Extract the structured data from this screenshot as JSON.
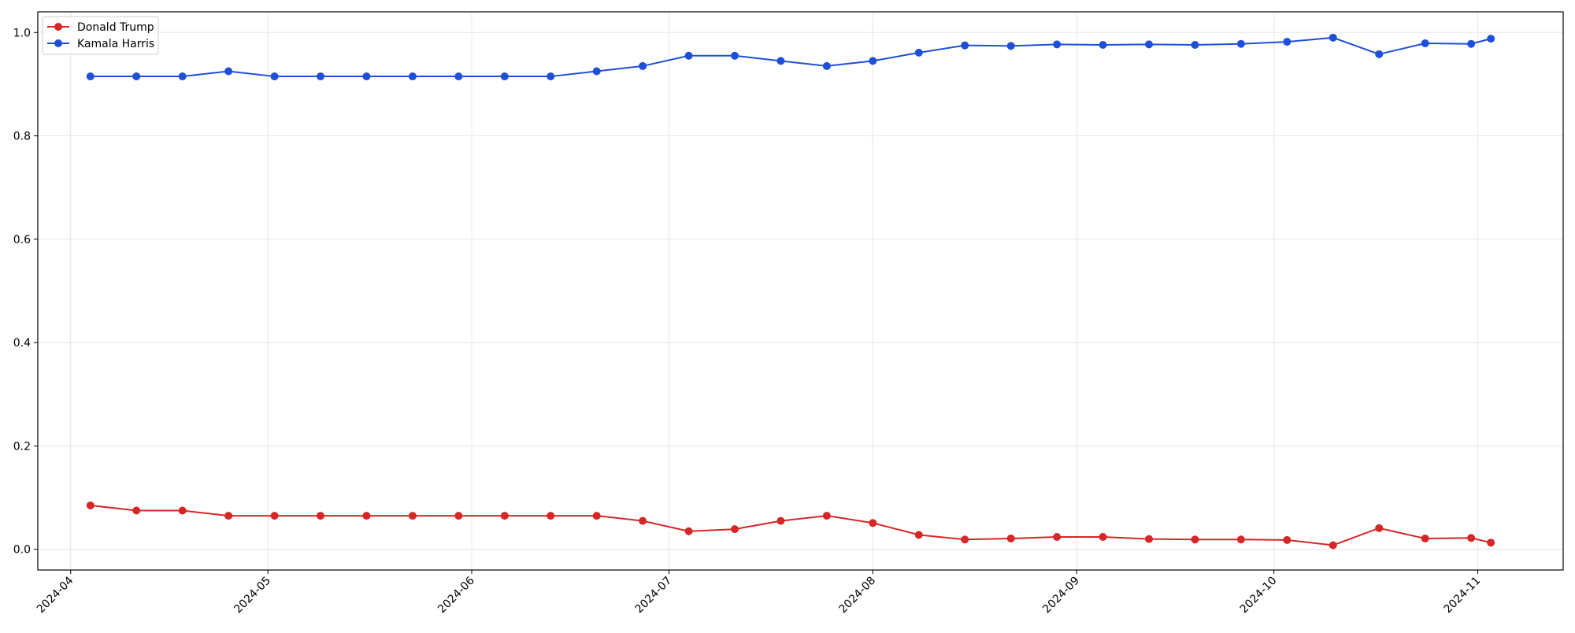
{
  "chart_data": {
    "type": "line",
    "title": "",
    "xlabel": "",
    "ylabel": "",
    "ylim": [
      -0.04,
      1.04
    ],
    "xlim": [
      "2024-03-27",
      "2024-11-14"
    ],
    "grid": true,
    "legend_position": "top-left",
    "x_ticks": [
      "2024-04",
      "2024-05",
      "2024-06",
      "2024-07",
      "2024-08",
      "2024-09",
      "2024-10",
      "2024-11"
    ],
    "y_ticks": [
      "0.0",
      "0.2",
      "0.4",
      "0.6",
      "0.8",
      "1.0"
    ],
    "x": [
      "2024-04-04",
      "2024-04-11",
      "2024-04-18",
      "2024-04-25",
      "2024-05-02",
      "2024-05-09",
      "2024-05-16",
      "2024-05-23",
      "2024-05-30",
      "2024-06-06",
      "2024-06-13",
      "2024-06-20",
      "2024-06-27",
      "2024-07-04",
      "2024-07-11",
      "2024-07-18",
      "2024-07-25",
      "2024-08-01",
      "2024-08-08",
      "2024-08-15",
      "2024-08-22",
      "2024-08-29",
      "2024-09-05",
      "2024-09-12",
      "2024-09-19",
      "2024-09-26",
      "2024-10-03",
      "2024-10-10",
      "2024-10-17",
      "2024-10-24",
      "2024-10-31",
      "2024-11-03"
    ],
    "series": [
      {
        "name": "Donald Trump",
        "color": "#d62728",
        "values": [
          0.085,
          0.075,
          0.075,
          0.065,
          0.065,
          0.065,
          0.065,
          0.065,
          0.065,
          0.065,
          0.065,
          0.065,
          0.055,
          0.035,
          0.039,
          0.055,
          0.065,
          0.051,
          0.028,
          0.019,
          0.021,
          0.024,
          0.024,
          0.02,
          0.019,
          0.019,
          0.018,
          0.008,
          0.041,
          0.021,
          0.022,
          0.013
        ]
      },
      {
        "name": "Kamala Harris",
        "color": "#1f4fd8",
        "values": [
          0.915,
          0.915,
          0.915,
          0.925,
          0.915,
          0.915,
          0.915,
          0.915,
          0.915,
          0.915,
          0.915,
          0.925,
          0.935,
          0.955,
          0.955,
          0.945,
          0.935,
          0.945,
          0.961,
          0.975,
          0.974,
          0.977,
          0.976,
          0.977,
          0.976,
          0.978,
          0.982,
          0.99,
          0.958,
          0.979,
          0.978,
          0.988
        ]
      }
    ]
  }
}
